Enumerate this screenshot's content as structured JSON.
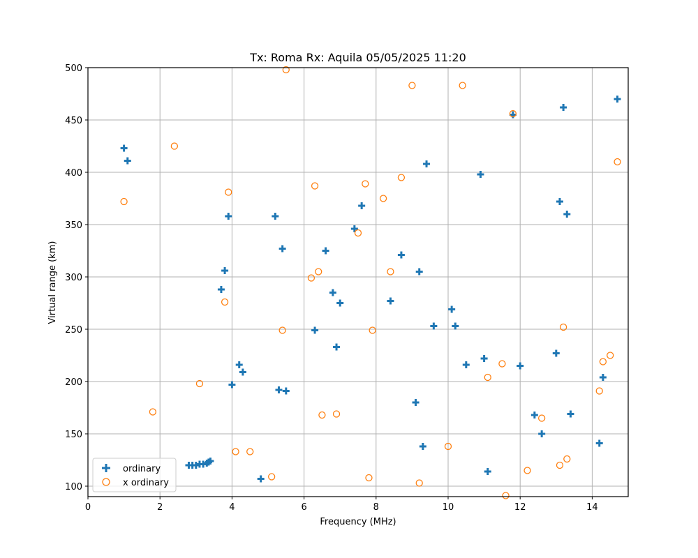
{
  "chart_data": {
    "type": "scatter",
    "title": "Tx: Roma Rx: Aquila 05/05/2025 11:20",
    "xlabel": "Frequency (MHz)",
    "ylabel": "Virtual range (km)",
    "xlim": [
      0,
      15
    ],
    "ylim": [
      90,
      500
    ],
    "xticks": [
      0,
      2,
      4,
      6,
      8,
      10,
      12,
      14
    ],
    "yticks": [
      100,
      150,
      200,
      250,
      300,
      350,
      400,
      450,
      500
    ],
    "grid": true,
    "legend_position": "lower left",
    "series": [
      {
        "name": "ordinary",
        "marker": "plus",
        "color": "#1f77b4",
        "points": [
          [
            1.0,
            423
          ],
          [
            1.1,
            411
          ],
          [
            2.8,
            120
          ],
          [
            2.9,
            120
          ],
          [
            3.0,
            120
          ],
          [
            3.1,
            121
          ],
          [
            3.2,
            121
          ],
          [
            3.3,
            122
          ],
          [
            3.35,
            123
          ],
          [
            3.4,
            124
          ],
          [
            3.7,
            288
          ],
          [
            3.8,
            306
          ],
          [
            3.9,
            358
          ],
          [
            4.0,
            197
          ],
          [
            4.2,
            216
          ],
          [
            4.3,
            209
          ],
          [
            4.8,
            107
          ],
          [
            5.2,
            358
          ],
          [
            5.3,
            192
          ],
          [
            5.4,
            327
          ],
          [
            5.5,
            191
          ],
          [
            6.3,
            249
          ],
          [
            6.6,
            325
          ],
          [
            6.8,
            285
          ],
          [
            6.9,
            233
          ],
          [
            7.0,
            275
          ],
          [
            7.4,
            346
          ],
          [
            7.6,
            368
          ],
          [
            8.4,
            277
          ],
          [
            8.7,
            321
          ],
          [
            9.1,
            180
          ],
          [
            9.2,
            305
          ],
          [
            9.3,
            138
          ],
          [
            9.4,
            408
          ],
          [
            9.6,
            253
          ],
          [
            10.1,
            269
          ],
          [
            10.2,
            253
          ],
          [
            10.5,
            216
          ],
          [
            10.9,
            398
          ],
          [
            11.0,
            222
          ],
          [
            11.1,
            114
          ],
          [
            11.8,
            455
          ],
          [
            12.0,
            215
          ],
          [
            12.4,
            168
          ],
          [
            12.6,
            150
          ],
          [
            13.0,
            227
          ],
          [
            13.1,
            372
          ],
          [
            13.2,
            462
          ],
          [
            13.3,
            360
          ],
          [
            13.4,
            169
          ],
          [
            14.2,
            141
          ],
          [
            14.3,
            204
          ],
          [
            14.7,
            470
          ]
        ]
      },
      {
        "name": "x ordinary",
        "marker": "circle",
        "color": "#ff7f0e",
        "points": [
          [
            1.0,
            372
          ],
          [
            1.8,
            171
          ],
          [
            2.4,
            425
          ],
          [
            3.1,
            198
          ],
          [
            3.8,
            276
          ],
          [
            3.9,
            381
          ],
          [
            4.1,
            133
          ],
          [
            4.5,
            133
          ],
          [
            5.1,
            109
          ],
          [
            5.4,
            249
          ],
          [
            5.5,
            498
          ],
          [
            6.2,
            299
          ],
          [
            6.3,
            387
          ],
          [
            6.4,
            305
          ],
          [
            6.5,
            168
          ],
          [
            6.9,
            169
          ],
          [
            7.5,
            342
          ],
          [
            7.7,
            389
          ],
          [
            7.8,
            108
          ],
          [
            7.9,
            249
          ],
          [
            8.2,
            375
          ],
          [
            8.4,
            305
          ],
          [
            8.7,
            395
          ],
          [
            9.0,
            483
          ],
          [
            9.2,
            103
          ],
          [
            10.0,
            138
          ],
          [
            10.4,
            483
          ],
          [
            11.1,
            204
          ],
          [
            11.5,
            217
          ],
          [
            11.6,
            91
          ],
          [
            11.8,
            456
          ],
          [
            12.2,
            115
          ],
          [
            12.6,
            165
          ],
          [
            13.1,
            120
          ],
          [
            13.2,
            252
          ],
          [
            13.3,
            126
          ],
          [
            14.2,
            191
          ],
          [
            14.3,
            219
          ],
          [
            14.5,
            225
          ],
          [
            14.7,
            410
          ]
        ]
      }
    ]
  }
}
